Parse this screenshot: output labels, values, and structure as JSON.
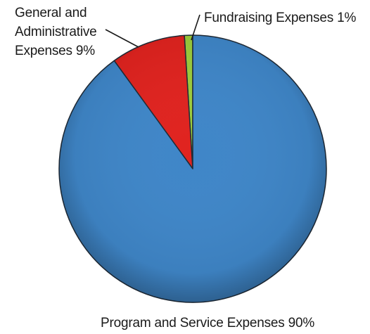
{
  "chart_data": {
    "type": "pie",
    "slices": [
      {
        "label": "Fundraising Expenses 1%",
        "value": 1,
        "color": "#9ccc3c"
      },
      {
        "label": "General and Administrative Expenses 9%",
        "value": 9,
        "color": "#e0231f"
      },
      {
        "label": "Program and Service Expenses 90%",
        "value": 90,
        "color": "#3f86c8"
      }
    ],
    "labels": {
      "fundraising": "Fundraising Expenses 1%",
      "general_line1": "General and",
      "general_line2": "Administrative",
      "general_line3": "Expenses 9%",
      "program": "Program and Service Expenses 90%"
    }
  }
}
